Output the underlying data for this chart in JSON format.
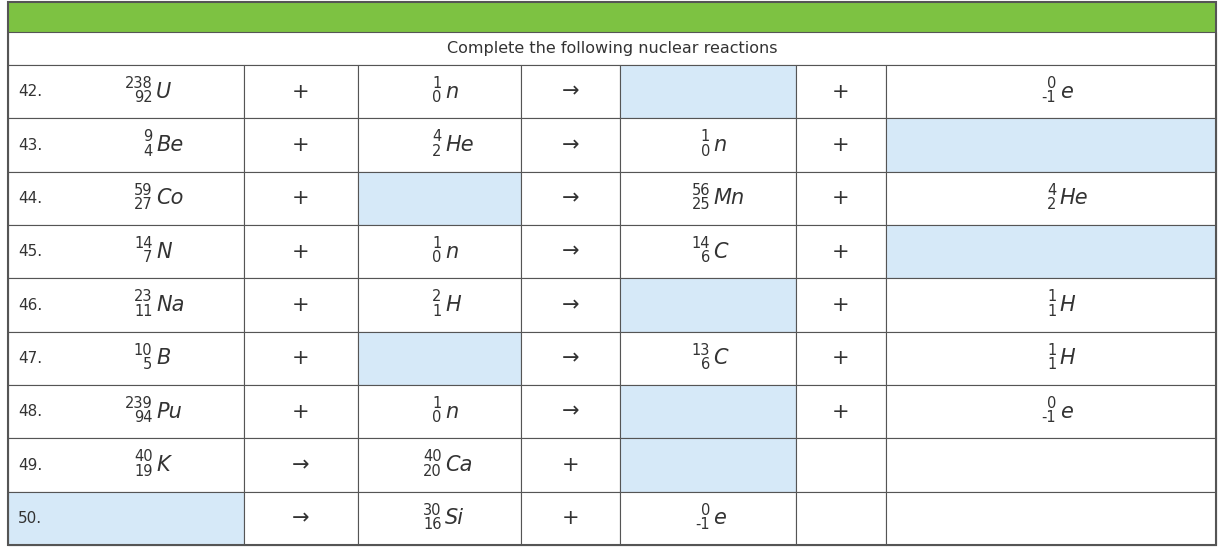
{
  "title": "Complete the following nuclear reactions",
  "green_header_color": "#7dc242",
  "light_blue": "#d6e9f8",
  "border_color": "#555555",
  "text_color": "#333333",
  "rows": [
    {
      "num": "42.",
      "col1": {
        "mass": "238",
        "atomic": "92",
        "symbol": "U",
        "bg": "white"
      },
      "col2": {
        "text": "+"
      },
      "col3": {
        "mass": "1",
        "atomic": "0",
        "symbol": "n",
        "bg": "white"
      },
      "col4": {
        "text": "→"
      },
      "col5": {
        "mass": "",
        "atomic": "",
        "symbol": "",
        "bg": "lightblue"
      },
      "col6": {
        "text": "+"
      },
      "col7": {
        "mass": "0",
        "atomic": "-1",
        "symbol": "e",
        "bg": "white"
      }
    },
    {
      "num": "43.",
      "col1": {
        "mass": "9",
        "atomic": "4",
        "symbol": "Be",
        "bg": "white"
      },
      "col2": {
        "text": "+"
      },
      "col3": {
        "mass": "4",
        "atomic": "2",
        "symbol": "He",
        "bg": "white"
      },
      "col4": {
        "text": "→"
      },
      "col5": {
        "mass": "1",
        "atomic": "0",
        "symbol": "n",
        "bg": "white"
      },
      "col6": {
        "text": "+"
      },
      "col7": {
        "mass": "",
        "atomic": "",
        "symbol": "",
        "bg": "lightblue"
      }
    },
    {
      "num": "44.",
      "col1": {
        "mass": "59",
        "atomic": "27",
        "symbol": "Co",
        "bg": "white"
      },
      "col2": {
        "text": "+"
      },
      "col3": {
        "mass": "",
        "atomic": "",
        "symbol": "",
        "bg": "lightblue"
      },
      "col4": {
        "text": "→"
      },
      "col5": {
        "mass": "56",
        "atomic": "25",
        "symbol": "Mn",
        "bg": "white"
      },
      "col6": {
        "text": "+"
      },
      "col7": {
        "mass": "4",
        "atomic": "2",
        "symbol": "He",
        "bg": "white"
      }
    },
    {
      "num": "45.",
      "col1": {
        "mass": "14",
        "atomic": "7",
        "symbol": "N",
        "bg": "white"
      },
      "col2": {
        "text": "+"
      },
      "col3": {
        "mass": "1",
        "atomic": "0",
        "symbol": "n",
        "bg": "white"
      },
      "col4": {
        "text": "→"
      },
      "col5": {
        "mass": "14",
        "atomic": "6",
        "symbol": "C",
        "bg": "white"
      },
      "col6": {
        "text": "+"
      },
      "col7": {
        "mass": "",
        "atomic": "",
        "symbol": "",
        "bg": "lightblue"
      }
    },
    {
      "num": "46.",
      "col1": {
        "mass": "23",
        "atomic": "11",
        "symbol": "Na",
        "bg": "white"
      },
      "col2": {
        "text": "+"
      },
      "col3": {
        "mass": "2",
        "atomic": "1",
        "symbol": "H",
        "bg": "white"
      },
      "col4": {
        "text": "→"
      },
      "col5": {
        "mass": "",
        "atomic": "",
        "symbol": "",
        "bg": "lightblue"
      },
      "col6": {
        "text": "+"
      },
      "col7": {
        "mass": "1",
        "atomic": "1",
        "symbol": "H",
        "bg": "white"
      }
    },
    {
      "num": "47.",
      "col1": {
        "mass": "10",
        "atomic": "5",
        "symbol": "B",
        "bg": "white"
      },
      "col2": {
        "text": "+"
      },
      "col3": {
        "mass": "",
        "atomic": "",
        "symbol": "",
        "bg": "lightblue"
      },
      "col4": {
        "text": "→"
      },
      "col5": {
        "mass": "13",
        "atomic": "6",
        "symbol": "C",
        "bg": "white"
      },
      "col6": {
        "text": "+"
      },
      "col7": {
        "mass": "1",
        "atomic": "1",
        "symbol": "H",
        "bg": "white"
      }
    },
    {
      "num": "48.",
      "col1": {
        "mass": "239",
        "atomic": "94",
        "symbol": "Pu",
        "bg": "white"
      },
      "col2": {
        "text": "+"
      },
      "col3": {
        "mass": "1",
        "atomic": "0",
        "symbol": "n",
        "bg": "white"
      },
      "col4": {
        "text": "→"
      },
      "col5": {
        "mass": "",
        "atomic": "",
        "symbol": "",
        "bg": "lightblue"
      },
      "col6": {
        "text": "+"
      },
      "col7": {
        "mass": "0",
        "atomic": "-1",
        "symbol": "e",
        "bg": "white"
      }
    },
    {
      "num": "49.",
      "col1": {
        "mass": "40",
        "atomic": "19",
        "symbol": "K",
        "bg": "white"
      },
      "col2": {
        "text": "→"
      },
      "col3": {
        "mass": "40",
        "atomic": "20",
        "symbol": "Ca",
        "bg": "white"
      },
      "col4": {
        "text": "+"
      },
      "col5": {
        "mass": "",
        "atomic": "",
        "symbol": "",
        "bg": "lightblue"
      },
      "col6": {
        "text": ""
      },
      "col7": {
        "mass": "",
        "atomic": "",
        "symbol": "",
        "bg": "white"
      }
    },
    {
      "num": "50.",
      "col1": {
        "mass": "",
        "atomic": "",
        "symbol": "",
        "bg": "lightblue"
      },
      "col2": {
        "text": "→"
      },
      "col3": {
        "mass": "30",
        "atomic": "16",
        "symbol": "Si",
        "bg": "white"
      },
      "col4": {
        "text": "+"
      },
      "col5": {
        "mass": "0",
        "atomic": "-1",
        "symbol": "e",
        "bg": "white"
      },
      "col6": {
        "text": ""
      },
      "col7": {
        "mass": "",
        "atomic": "",
        "symbol": "",
        "bg": "white"
      }
    }
  ]
}
